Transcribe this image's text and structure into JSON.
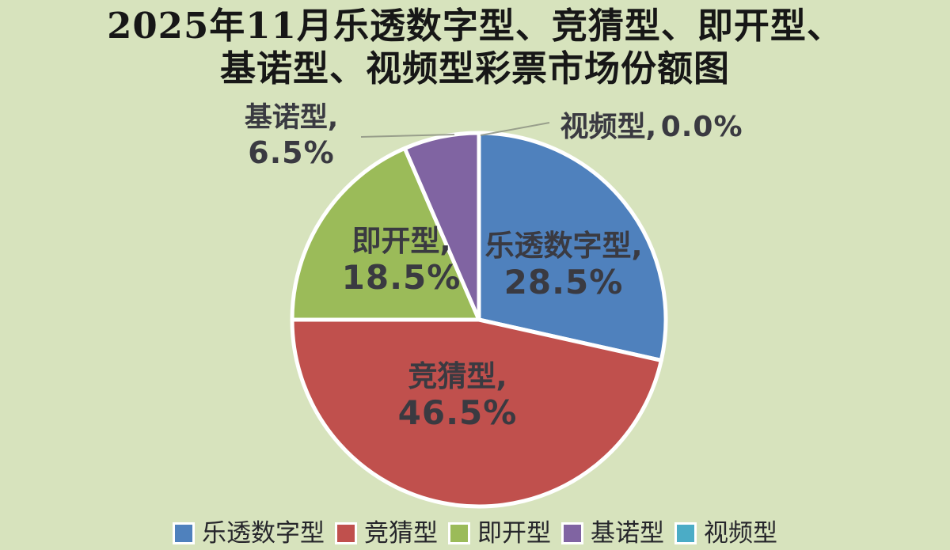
{
  "page": {
    "background_color": "#d7e3bd"
  },
  "title": {
    "line1": "2025年11月乐透数字型、竞猜型、即开型、",
    "line2": "基诺型、视频型彩票市场份额图",
    "full": "2025年11月乐透数字型、竞猜型、即开型、基诺型、视频型彩票市场份额图"
  },
  "chart_data": {
    "type": "pie",
    "title": "2025年11月乐透数字型、竞猜型、即开型、基诺型、视频型彩票市场份额图",
    "categories": [
      "乐透数字型",
      "竞猜型",
      "即开型",
      "基诺型",
      "视频型"
    ],
    "values": [
      28.5,
      46.5,
      18.5,
      6.5,
      0.0
    ],
    "unit": "%",
    "colors": [
      "#4f81bd",
      "#c0504d",
      "#9bbb59",
      "#8064a2",
      "#4bacc6"
    ],
    "keys": [
      "lotto-digital",
      "sports-betting",
      "instant",
      "keno",
      "video"
    ],
    "start_angle_deg": 0,
    "direction": "clockwise",
    "grid": false,
    "legend_position": "bottom",
    "legend_items": [
      "乐透数字型",
      "竞猜型",
      "即开型",
      "基诺型",
      "视频型"
    ],
    "slice_labels": [
      {
        "name": "乐透数字型,",
        "value": "28.5%",
        "placement": "inside"
      },
      {
        "name": "竞猜型,",
        "value": "46.5%",
        "placement": "inside"
      },
      {
        "name": "即开型,",
        "value": "18.5%",
        "placement": "inside"
      },
      {
        "name": "基诺型,",
        "value": "6.5%",
        "placement": "outside"
      },
      {
        "name": "视频型,",
        "value": "0.0%",
        "placement": "outside"
      }
    ]
  }
}
